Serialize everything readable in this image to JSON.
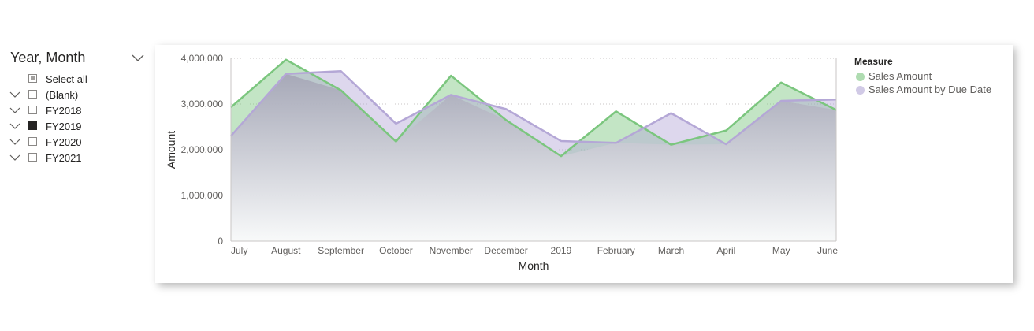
{
  "slicer": {
    "title": "Year, Month",
    "items": [
      {
        "label": "Select all",
        "state": "partial",
        "expander": false
      },
      {
        "label": "(Blank)",
        "state": "unchecked",
        "expander": true
      },
      {
        "label": "FY2018",
        "state": "unchecked",
        "expander": true
      },
      {
        "label": "FY2019",
        "state": "checked",
        "expander": true
      },
      {
        "label": "FY2020",
        "state": "unchecked",
        "expander": true
      },
      {
        "label": "FY2021",
        "state": "unchecked",
        "expander": true
      }
    ]
  },
  "chart_data": {
    "type": "area",
    "xlabel": "Month",
    "ylabel": "Amount",
    "ylim": [
      0,
      4000000
    ],
    "yticks": [
      0,
      1000000,
      2000000,
      3000000,
      4000000
    ],
    "ytick_labels": [
      "0",
      "1,000,000",
      "2,000,000",
      "3,000,000",
      "4,000,000"
    ],
    "grid": true,
    "legend_title": "Measure",
    "legend_position": "top-right",
    "categories": [
      "July",
      "August",
      "September",
      "October",
      "November",
      "December",
      "2019",
      "February",
      "March",
      "April",
      "May",
      "June"
    ],
    "series": [
      {
        "name": "Sales Amount",
        "color": "#7bc67e",
        "values": [
          2930000,
          3970000,
          3300000,
          2180000,
          3620000,
          2650000,
          1860000,
          2840000,
          2110000,
          2420000,
          3470000,
          2870000
        ]
      },
      {
        "name": "Sales Amount by Due Date",
        "color": "#b4a7d6",
        "values": [
          2300000,
          3660000,
          3720000,
          2570000,
          3200000,
          2890000,
          2190000,
          2150000,
          2800000,
          2120000,
          3070000,
          3100000
        ]
      }
    ]
  }
}
